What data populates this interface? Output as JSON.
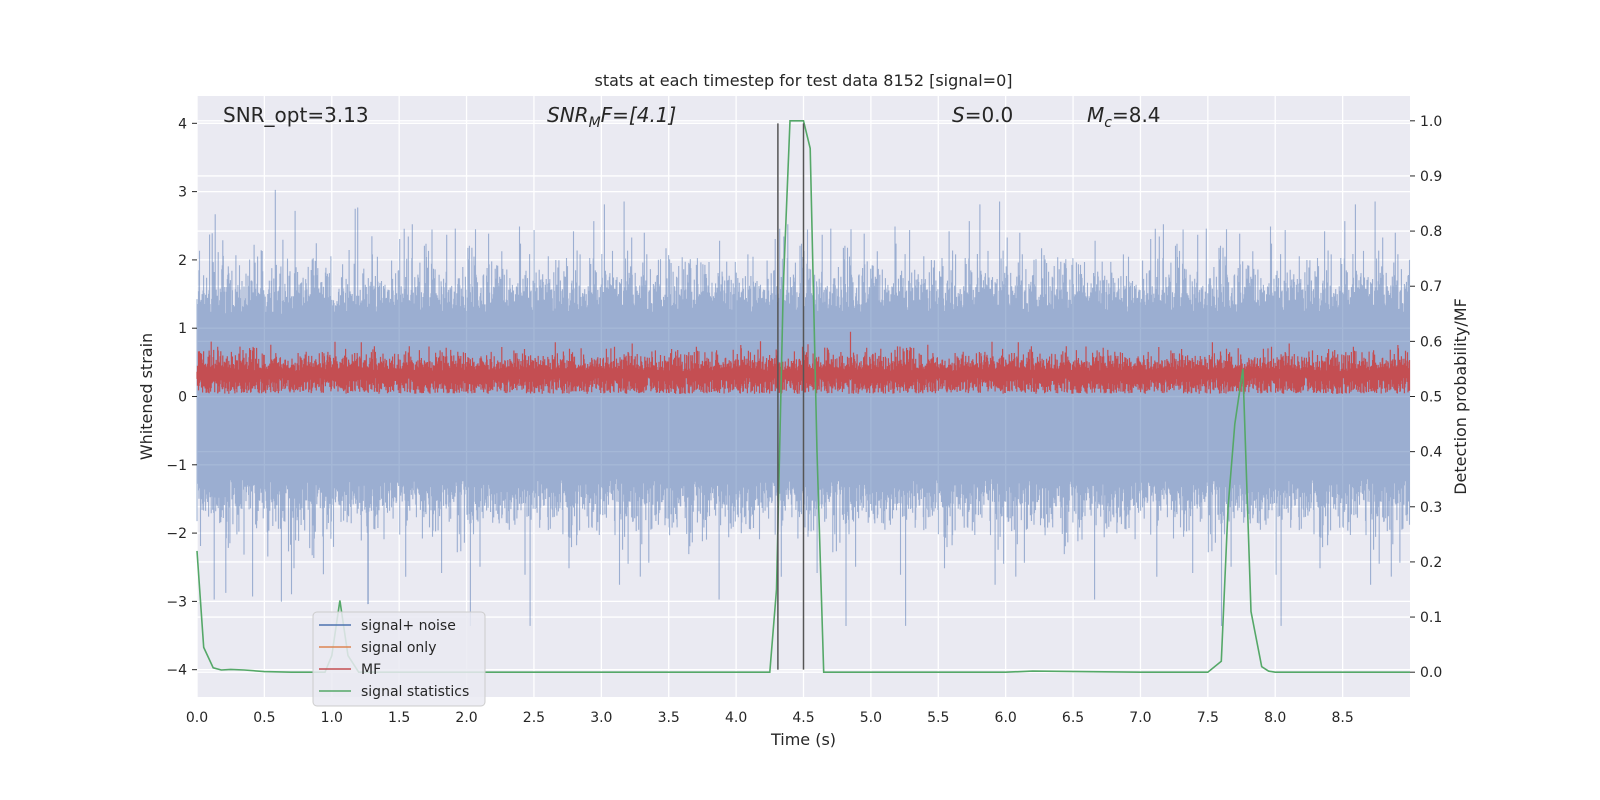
{
  "chart_data": {
    "type": "line",
    "title": "stats at each timestep for test data 8152 [signal=0]",
    "xlabel": "Time (s)",
    "ylabel": "Whitened strain",
    "y2label": "Detection probability/MF",
    "xlim": [
      0.0,
      9.0
    ],
    "ylim": [
      -4.4,
      4.4
    ],
    "y2lim": [
      -0.045,
      1.045
    ],
    "xticks": [
      0.0,
      0.5,
      1.0,
      1.5,
      2.0,
      2.5,
      3.0,
      3.5,
      4.0,
      4.5,
      5.0,
      5.5,
      6.0,
      6.5,
      7.0,
      7.5,
      8.0,
      8.5
    ],
    "xtick_labels": [
      "0.0",
      "0.5",
      "1.0",
      "1.5",
      "2.0",
      "2.5",
      "3.0",
      "3.5",
      "4.0",
      "4.5",
      "5.0",
      "5.5",
      "6.0",
      "6.5",
      "7.0",
      "7.5",
      "8.0",
      "8.5"
    ],
    "yticks": [
      -4,
      -3,
      -2,
      -1,
      0,
      1,
      2,
      3,
      4
    ],
    "ytick_labels": [
      "−4",
      "−3",
      "−2",
      "−1",
      "0",
      "1",
      "2",
      "3",
      "4"
    ],
    "y2ticks": [
      0.0,
      0.1,
      0.2,
      0.3,
      0.4,
      0.5,
      0.6,
      0.7,
      0.8,
      0.9,
      1.0
    ],
    "y2tick_labels": [
      "0.0",
      "0.1",
      "0.2",
      "0.3",
      "0.4",
      "0.5",
      "0.6",
      "0.7",
      "0.8",
      "0.9",
      "1.0"
    ],
    "grid": true,
    "annotations": {
      "snr_opt": "SNR_opt=3.13",
      "snr_mf_main": "SNR",
      "snr_mf_sub": "M",
      "snr_mf_rest": "F=[4.1]",
      "s_main": "S",
      "s_rest": "=0.0",
      "mc_main": "M",
      "mc_sub": "c",
      "mc_rest": "=8.4"
    },
    "vertical_lines": [
      4.31,
      4.5
    ],
    "series": [
      {
        "name": "signal+ noise",
        "color": "#4c72b0",
        "axis": "left",
        "description": "whitened noise, envelope approx ±2"
      },
      {
        "name": "signal only",
        "color": "#dd8452",
        "axis": "left",
        "values": []
      },
      {
        "name": "MF",
        "color": "#c44e52",
        "axis": "right",
        "description": "matched filter output ~0.5-0.6"
      },
      {
        "name": "signal statistics",
        "color": "#55a868",
        "axis": "right",
        "x": [
          0.0,
          0.05,
          0.12,
          0.18,
          0.25,
          0.35,
          0.5,
          0.7,
          0.95,
          1.0,
          1.06,
          1.12,
          1.2,
          1.5,
          2.0,
          3.0,
          4.0,
          4.25,
          4.3,
          4.35,
          4.4,
          4.5,
          4.55,
          4.6,
          4.65,
          5.0,
          6.0,
          6.2,
          7.0,
          7.5,
          7.6,
          7.65,
          7.7,
          7.76,
          7.82,
          7.9,
          7.95,
          8.0,
          8.5,
          9.0
        ],
        "y": [
          0.22,
          0.045,
          0.008,
          0.004,
          0.005,
          0.004,
          0.001,
          0.0,
          0.0,
          0.03,
          0.13,
          0.03,
          0.0,
          0.0,
          0.0,
          0.0,
          0.0,
          0.0,
          0.15,
          0.7,
          1.0,
          1.0,
          0.95,
          0.4,
          0.0,
          0.0,
          0.0,
          0.002,
          0.0,
          0.0,
          0.02,
          0.3,
          0.45,
          0.55,
          0.11,
          0.01,
          0.002,
          0.0,
          0.0,
          0.0
        ]
      }
    ],
    "legend": {
      "placement": "lower-left",
      "entries": [
        {
          "label": "signal+ noise",
          "color": "#4c72b0"
        },
        {
          "label": "signal only",
          "color": "#dd8452"
        },
        {
          "label": "MF",
          "color": "#c44e52"
        },
        {
          "label": "signal statistics",
          "color": "#55a868"
        }
      ]
    },
    "style": {
      "background": "#eaeaf2",
      "grid_color": "#ffffff"
    }
  }
}
